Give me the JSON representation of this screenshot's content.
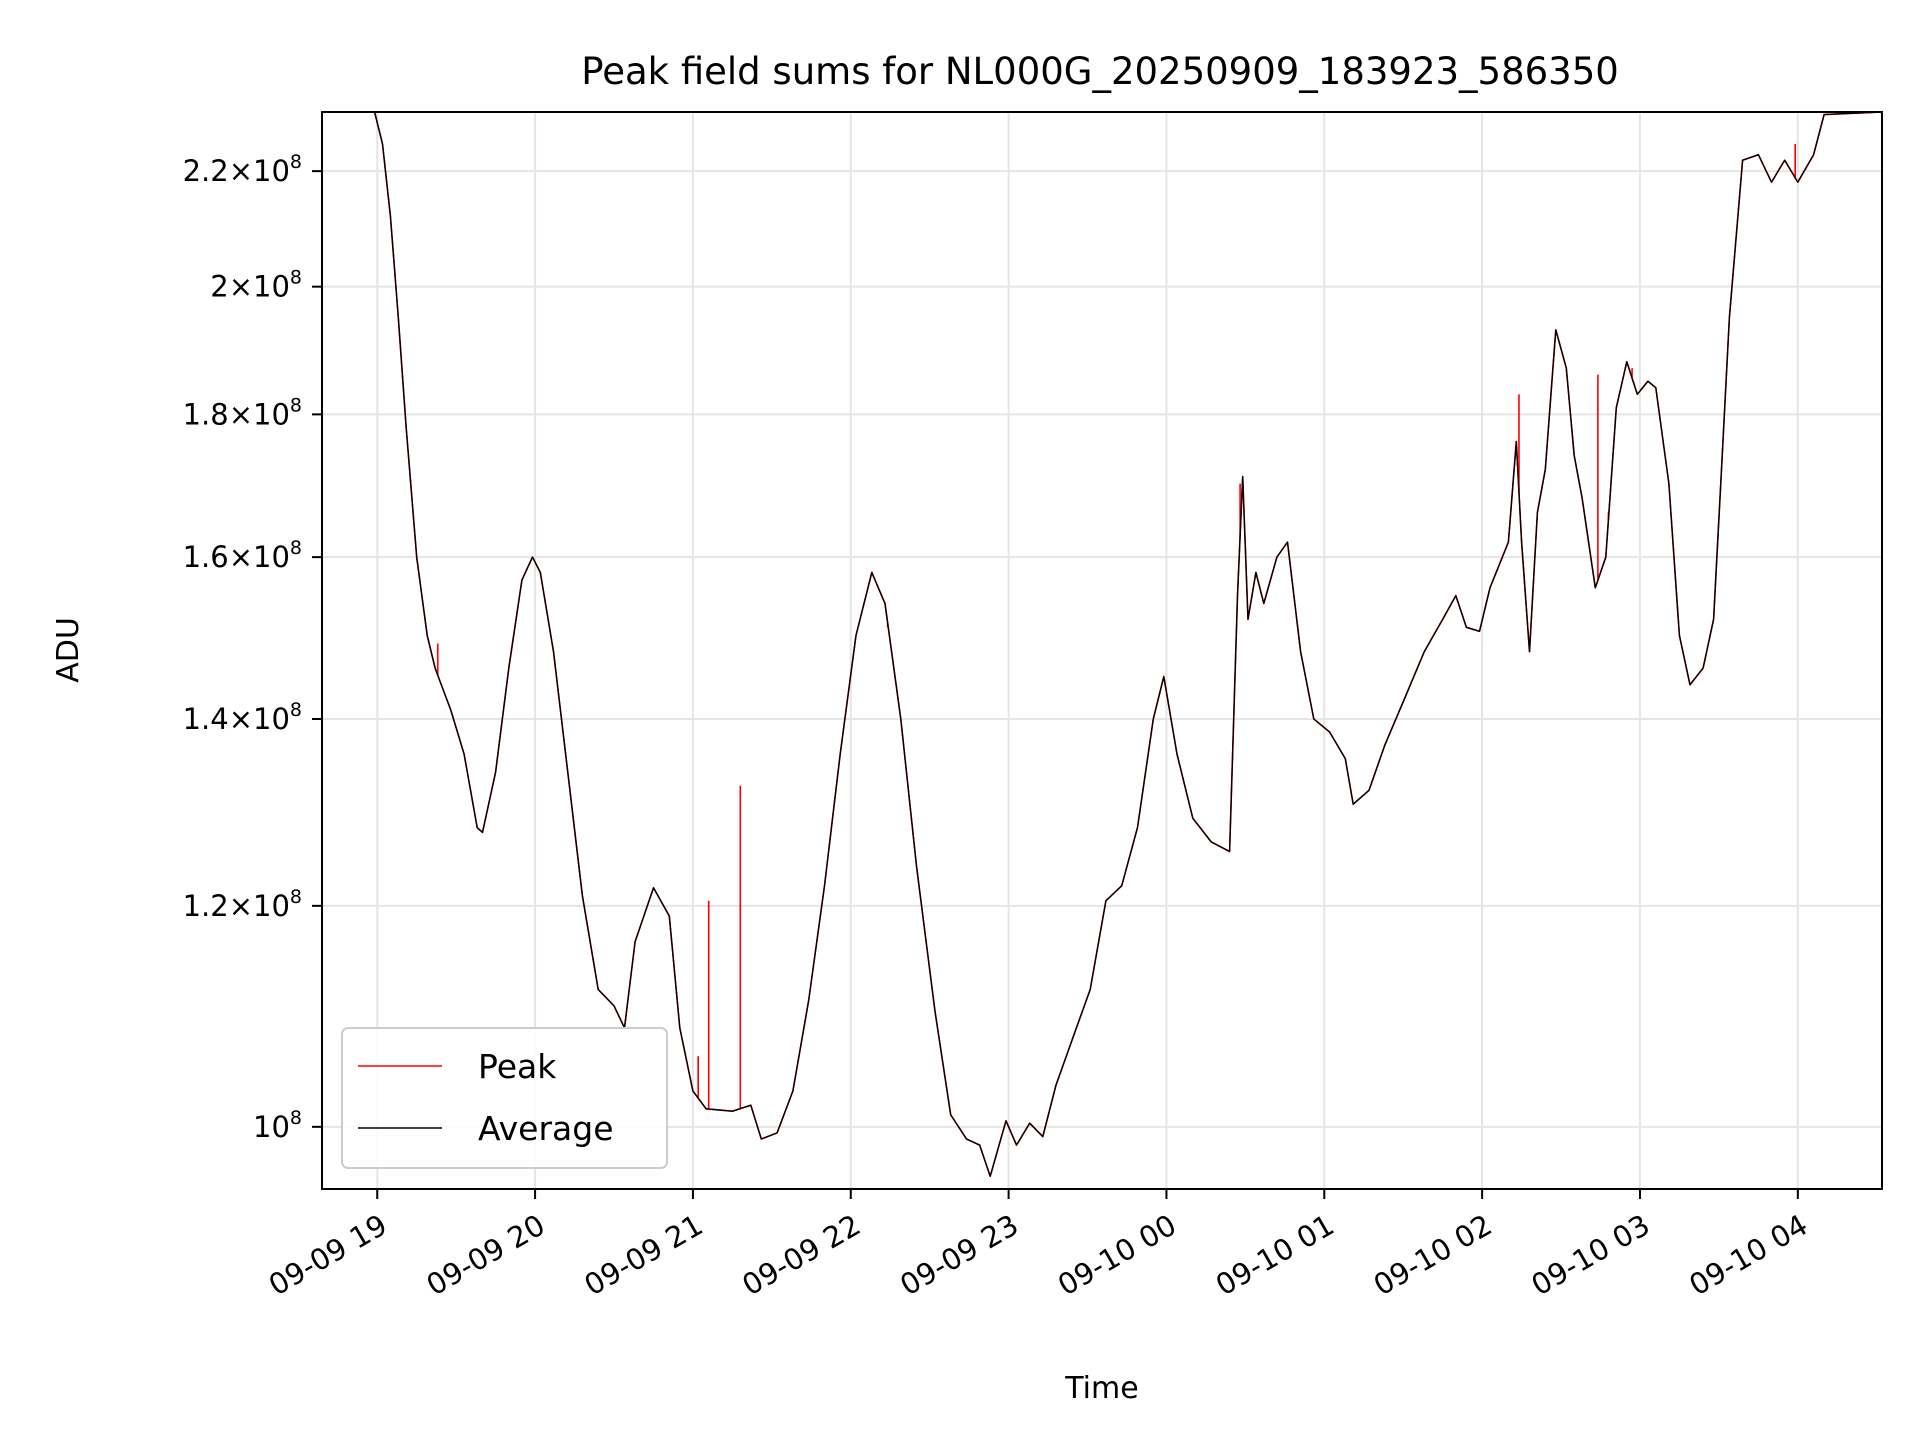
{
  "chart_data": {
    "type": "line",
    "title": "Peak field sums for NL000G_20250909_183923_586350",
    "xlabel": "Time",
    "ylabel": "ADU",
    "y_scale": "log",
    "ylim": [
      95000000,
      231000000
    ],
    "xlim": [
      "2025-09-09 18:39",
      "2025-09-10 04:32"
    ],
    "grid": true,
    "legend_position": "lower-left",
    "x_ticks": [
      {
        "t": "2025-09-09 19:00",
        "label": "09-09 19"
      },
      {
        "t": "2025-09-09 20:00",
        "label": "09-09 20"
      },
      {
        "t": "2025-09-09 21:00",
        "label": "09-09 21"
      },
      {
        "t": "2025-09-09 22:00",
        "label": "09-09 22"
      },
      {
        "t": "2025-09-09 23:00",
        "label": "09-09 23"
      },
      {
        "t": "2025-09-10 00:00",
        "label": "09-10 00"
      },
      {
        "t": "2025-09-10 01:00",
        "label": "09-10 01"
      },
      {
        "t": "2025-09-10 02:00",
        "label": "09-10 02"
      },
      {
        "t": "2025-09-10 03:00",
        "label": "09-10 03"
      },
      {
        "t": "2025-09-10 04:00",
        "label": "09-10 04"
      }
    ],
    "y_ticks": [
      {
        "value": 100000000,
        "mant": "",
        "exp": "8"
      },
      {
        "value": 120000000,
        "mant": "1.2",
        "exp": "8"
      },
      {
        "value": 140000000,
        "mant": "1.4",
        "exp": "8"
      },
      {
        "value": 160000000,
        "mant": "1.6",
        "exp": "8"
      },
      {
        "value": 180000000,
        "mant": "1.8",
        "exp": "8"
      },
      {
        "value": 200000000,
        "mant": "2",
        "exp": "8"
      },
      {
        "value": 220000000,
        "mant": "2.2",
        "exp": "8"
      }
    ],
    "series": [
      {
        "name": "Peak",
        "color": "#ff0000",
        "spikes": [
          {
            "t": "2025-09-09 19:23",
            "value": 149000000
          },
          {
            "t": "2025-09-09 21:02",
            "value": 106000000
          },
          {
            "t": "2025-09-09 21:06",
            "value": 120500000
          },
          {
            "t": "2025-09-09 21:18",
            "value": 132500000
          },
          {
            "t": "2025-09-09 22:14",
            "value": 151000000
          },
          {
            "t": "2025-09-10 00:28",
            "value": 170000000
          },
          {
            "t": "2025-09-10 02:14",
            "value": 183000000
          },
          {
            "t": "2025-09-10 02:44",
            "value": 186000000
          },
          {
            "t": "2025-09-10 02:48",
            "value": 166000000
          },
          {
            "t": "2025-09-10 02:57",
            "value": 187000000
          },
          {
            "t": "2025-09-10 03:59",
            "value": 225000000
          }
        ]
      },
      {
        "name": "Average",
        "color": "#000000",
        "points": [
          [
            "2025-09-09 18:39",
            231000000
          ],
          [
            "2025-09-09 18:59",
            231000000
          ],
          [
            "2025-09-09 19:02",
            225000000
          ],
          [
            "2025-09-09 19:05",
            212000000
          ],
          [
            "2025-09-09 19:08",
            195000000
          ],
          [
            "2025-09-09 19:11",
            178000000
          ],
          [
            "2025-09-09 19:15",
            160000000
          ],
          [
            "2025-09-09 19:19",
            150000000
          ],
          [
            "2025-09-09 19:22",
            146000000
          ],
          [
            "2025-09-09 19:28",
            141000000
          ],
          [
            "2025-09-09 19:33",
            136000000
          ],
          [
            "2025-09-09 19:38",
            128000000
          ],
          [
            "2025-09-09 19:40",
            127500000
          ],
          [
            "2025-09-09 19:45",
            134000000
          ],
          [
            "2025-09-09 19:50",
            146000000
          ],
          [
            "2025-09-09 19:55",
            157000000
          ],
          [
            "2025-09-09 19:59",
            160000000
          ],
          [
            "2025-09-09 20:02",
            158000000
          ],
          [
            "2025-09-09 20:07",
            148000000
          ],
          [
            "2025-09-09 20:12",
            135000000
          ],
          [
            "2025-09-09 20:18",
            121000000
          ],
          [
            "2025-09-09 20:24",
            112000000
          ],
          [
            "2025-09-09 20:30",
            110500000
          ],
          [
            "2025-09-09 20:34",
            108500000
          ],
          [
            "2025-09-09 20:38",
            116500000
          ],
          [
            "2025-09-09 20:45",
            121800000
          ],
          [
            "2025-09-09 20:51",
            119000000
          ],
          [
            "2025-09-09 20:55",
            108500000
          ],
          [
            "2025-09-09 21:00",
            103000000
          ],
          [
            "2025-09-09 21:05",
            101500000
          ],
          [
            "2025-09-09 21:15",
            101300000
          ],
          [
            "2025-09-09 21:22",
            101800000
          ],
          [
            "2025-09-09 21:26",
            99000000
          ],
          [
            "2025-09-09 21:32",
            99500000
          ],
          [
            "2025-09-09 21:38",
            103000000
          ],
          [
            "2025-09-09 21:44",
            111000000
          ],
          [
            "2025-09-09 21:50",
            122000000
          ],
          [
            "2025-09-09 21:56",
            136000000
          ],
          [
            "2025-09-09 22:02",
            150000000
          ],
          [
            "2025-09-09 22:08",
            158000000
          ],
          [
            "2025-09-09 22:13",
            154000000
          ],
          [
            "2025-09-09 22:19",
            140000000
          ],
          [
            "2025-09-09 22:25",
            124000000
          ],
          [
            "2025-09-09 22:32",
            110000000
          ],
          [
            "2025-09-09 22:38",
            101000000
          ],
          [
            "2025-09-09 22:44",
            99000000
          ],
          [
            "2025-09-09 22:49",
            98500000
          ],
          [
            "2025-09-09 22:53",
            96000000
          ],
          [
            "2025-09-09 22:59",
            100500000
          ],
          [
            "2025-09-09 23:03",
            98500000
          ],
          [
            "2025-09-09 23:08",
            100300000
          ],
          [
            "2025-09-09 23:13",
            99200000
          ],
          [
            "2025-09-09 23:18",
            103500000
          ],
          [
            "2025-09-09 23:25",
            108000000
          ],
          [
            "2025-09-09 23:31",
            112000000
          ],
          [
            "2025-09-09 23:37",
            120500000
          ],
          [
            "2025-09-09 23:43",
            122000000
          ],
          [
            "2025-09-09 23:49",
            128000000
          ],
          [
            "2025-09-09 23:55",
            140000000
          ],
          [
            "2025-09-09 23:59",
            145000000
          ],
          [
            "2025-09-10 00:04",
            136000000
          ],
          [
            "2025-09-10 00:10",
            129000000
          ],
          [
            "2025-09-10 00:17",
            126500000
          ],
          [
            "2025-09-10 00:24",
            125500000
          ],
          [
            "2025-09-10 00:27",
            155000000
          ],
          [
            "2025-09-10 00:29",
            171000000
          ],
          [
            "2025-09-10 00:31",
            152000000
          ],
          [
            "2025-09-10 00:34",
            158000000
          ],
          [
            "2025-09-10 00:37",
            154000000
          ],
          [
            "2025-09-10 00:42",
            160000000
          ],
          [
            "2025-09-10 00:46",
            162000000
          ],
          [
            "2025-09-10 00:51",
            148000000
          ],
          [
            "2025-09-10 00:56",
            140000000
          ],
          [
            "2025-09-10 01:02",
            138500000
          ],
          [
            "2025-09-10 01:08",
            135500000
          ],
          [
            "2025-09-10 01:11",
            130500000
          ],
          [
            "2025-09-10 01:17",
            132000000
          ],
          [
            "2025-09-10 01:23",
            137000000
          ],
          [
            "2025-09-10 01:30",
            142000000
          ],
          [
            "2025-09-10 01:38",
            148000000
          ],
          [
            "2025-09-10 01:45",
            152000000
          ],
          [
            "2025-09-10 01:50",
            155000000
          ],
          [
            "2025-09-10 01:54",
            151000000
          ],
          [
            "2025-09-10 01:59",
            150500000
          ],
          [
            "2025-09-10 02:03",
            156000000
          ],
          [
            "2025-09-10 02:10",
            162000000
          ],
          [
            "2025-09-10 02:13",
            176000000
          ],
          [
            "2025-09-10 02:15",
            162000000
          ],
          [
            "2025-09-10 02:18",
            148000000
          ],
          [
            "2025-09-10 02:21",
            166000000
          ],
          [
            "2025-09-10 02:24",
            172000000
          ],
          [
            "2025-09-10 02:28",
            193000000
          ],
          [
            "2025-09-10 02:32",
            187000000
          ],
          [
            "2025-09-10 02:35",
            174000000
          ],
          [
            "2025-09-10 02:38",
            168000000
          ],
          [
            "2025-09-10 02:43",
            156000000
          ],
          [
            "2025-09-10 02:47",
            160000000
          ],
          [
            "2025-09-10 02:51",
            181000000
          ],
          [
            "2025-09-10 02:55",
            188000000
          ],
          [
            "2025-09-10 02:59",
            183000000
          ],
          [
            "2025-09-10 03:03",
            185000000
          ],
          [
            "2025-09-10 03:06",
            184000000
          ],
          [
            "2025-09-10 03:11",
            170000000
          ],
          [
            "2025-09-10 03:15",
            150000000
          ],
          [
            "2025-09-10 03:19",
            144000000
          ],
          [
            "2025-09-10 03:24",
            146000000
          ],
          [
            "2025-09-10 03:28",
            152000000
          ],
          [
            "2025-09-10 03:31",
            172000000
          ],
          [
            "2025-09-10 03:34",
            195000000
          ],
          [
            "2025-09-10 03:39",
            222000000
          ],
          [
            "2025-09-10 03:45",
            223000000
          ],
          [
            "2025-09-10 03:50",
            218000000
          ],
          [
            "2025-09-10 03:55",
            222000000
          ],
          [
            "2025-09-10 04:00",
            218000000
          ],
          [
            "2025-09-10 04:06",
            223000000
          ],
          [
            "2025-09-10 04:10",
            230500000
          ],
          [
            "2025-09-10 04:32",
            231000000
          ]
        ]
      }
    ]
  }
}
